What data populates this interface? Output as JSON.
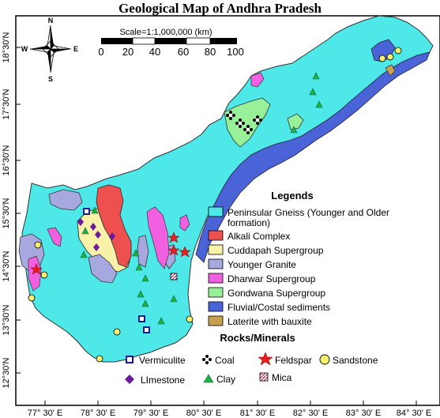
{
  "title": "Geological Map of Andhra Pradesh",
  "compass": {
    "n": "N",
    "s": "S",
    "e": "E",
    "w": "W"
  },
  "scale": {
    "label": "Scale=1:1,000,000 (km)",
    "ticks": [
      "0",
      "20",
      "40",
      "60",
      "80",
      "100"
    ]
  },
  "lat_labels": [
    "18°30'N",
    "17°30'N",
    "16°30'N",
    "15°30'N",
    "14°30'N",
    "13°30'N",
    "12°30'N"
  ],
  "lon_labels": [
    "77° 30' E",
    "78° 30' E",
    "79° 30' E",
    "80° 30' E",
    "81° 30' E",
    "82° 30' E",
    "83° 30' E",
    "84° 30' E"
  ],
  "legend": {
    "title": "Legends",
    "items": [
      {
        "label": "Peninsular Gneiss (Younger and Older",
        "label2": "formation)",
        "color": "#4ee8e8"
      },
      {
        "label": "Alkali Complex",
        "color": "#ee5050"
      },
      {
        "label": "Cuddapah Supergroup",
        "color": "#f8f2a8"
      },
      {
        "label": "Younger Granite",
        "color": "#a8a8e0"
      },
      {
        "label": "Dharwar Supergroup",
        "color": "#f060e0"
      },
      {
        "label": "Gondwana Supergroup",
        "color": "#98f098"
      },
      {
        "label": "Fluvial/Costal sediments",
        "color": "#4a64d8"
      },
      {
        "label": "Laterite with bauxite",
        "color": "#c8a050"
      }
    ]
  },
  "minerals": {
    "title": "Rocks/Minerals",
    "items": [
      {
        "label": "Vermiculite",
        "icon": "vermiculite-icon"
      },
      {
        "label": "Coal",
        "icon": "coal-icon"
      },
      {
        "label": "Feldspar",
        "icon": "feldspar-icon"
      },
      {
        "label": "Sandstone",
        "icon": "sandstone-icon"
      },
      {
        "label": "LImestone",
        "icon": "limestone-icon"
      },
      {
        "label": "Clay",
        "icon": "clay-icon"
      },
      {
        "label": "Mica",
        "icon": "mica-icon"
      }
    ]
  }
}
